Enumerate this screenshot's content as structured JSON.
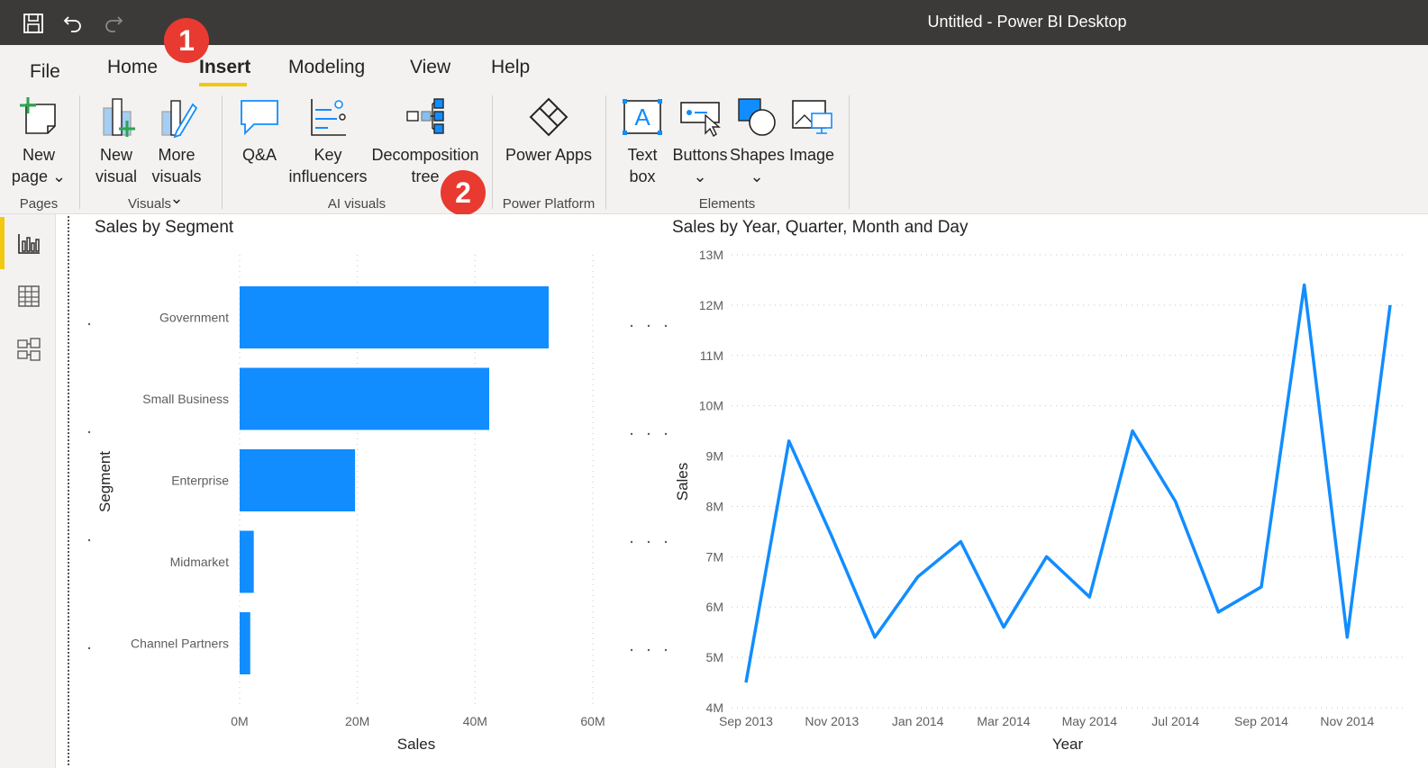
{
  "titlebar": {
    "title": "Untitled - Power BI Desktop",
    "icons": [
      "save-icon",
      "undo-icon",
      "redo-icon"
    ]
  },
  "ribbon_tabs": [
    {
      "label": "File"
    },
    {
      "label": "Home"
    },
    {
      "label": "Insert",
      "active": true
    },
    {
      "label": "Modeling"
    },
    {
      "label": "View"
    },
    {
      "label": "Help"
    }
  ],
  "ribbon": {
    "new_page": {
      "line1": "New",
      "line2": "page ⌄"
    },
    "new_visual": {
      "line1": "New",
      "line2": "visual"
    },
    "more_visuals": {
      "line1": "More",
      "line2": "visuals ⌄"
    },
    "qna": {
      "line1": "Q&A"
    },
    "key_influencers": {
      "line1": "Key",
      "line2": "influencers"
    },
    "decomposition_tree": {
      "line1": "Decomposition",
      "line2": "tree"
    },
    "power_apps": {
      "line1": "Power Apps"
    },
    "text_box": {
      "line1": "Text",
      "line2": "box"
    },
    "buttons": {
      "line1": "Buttons",
      "line2": "⌄"
    },
    "shapes": {
      "line1": "Shapes",
      "line2": "⌄"
    },
    "image": {
      "line1": "Image"
    },
    "groups": {
      "pages": "Pages",
      "visuals": "Visuals",
      "ai_visuals": "AI visuals",
      "power_platform": "Power Platform",
      "elements": "Elements"
    }
  },
  "badges": {
    "one": "1",
    "two": "2"
  },
  "leftnav": {
    "items": [
      "report-view-icon",
      "data-view-icon",
      "model-view-icon"
    ],
    "active": 0
  },
  "colors": {
    "accent": "#f2c811",
    "series": "#118dff",
    "badge": "#e83a30",
    "titlebar": "#3b3a39"
  },
  "chart_data": [
    {
      "type": "bar",
      "orientation": "horizontal",
      "title": "Sales by Segment",
      "xlabel": "Sales",
      "ylabel": "Segment",
      "categories": [
        "Government",
        "Small Business",
        "Enterprise",
        "Midmarket",
        "Channel Partners"
      ],
      "values": [
        52.5,
        42.4,
        19.6,
        2.4,
        1.8
      ],
      "unit": "M",
      "xlim": [
        0,
        60
      ],
      "xticks": [
        "0M",
        "20M",
        "40M",
        "60M"
      ],
      "grid": true
    },
    {
      "type": "line",
      "title": "Sales by Year, Quarter, Month and Day",
      "xlabel": "Year",
      "ylabel": "Sales",
      "x": [
        "Sep 2013",
        "Oct 2013",
        "Nov 2013",
        "Dec 2013",
        "Jan 2014",
        "Feb 2014",
        "Mar 2014",
        "Apr 2014",
        "May 2014",
        "Jun 2014",
        "Jul 2014",
        "Aug 2014",
        "Sep 2014",
        "Oct 2014",
        "Nov 2014",
        "Dec 2014"
      ],
      "values": [
        4.5,
        9.3,
        7.4,
        5.4,
        6.6,
        7.3,
        5.6,
        7.0,
        6.2,
        9.5,
        8.1,
        5.9,
        6.4,
        12.4,
        5.4,
        12.0
      ],
      "unit": "M",
      "ylim": [
        4,
        13
      ],
      "yticks": [
        "4M",
        "5M",
        "6M",
        "7M",
        "8M",
        "9M",
        "10M",
        "11M",
        "12M",
        "13M"
      ],
      "xticks": [
        "Sep 2013",
        "Nov 2013",
        "Jan 2014",
        "Mar 2014",
        "May 2014",
        "Jul 2014",
        "Sep 2014",
        "Nov 2014"
      ],
      "grid": true
    }
  ]
}
